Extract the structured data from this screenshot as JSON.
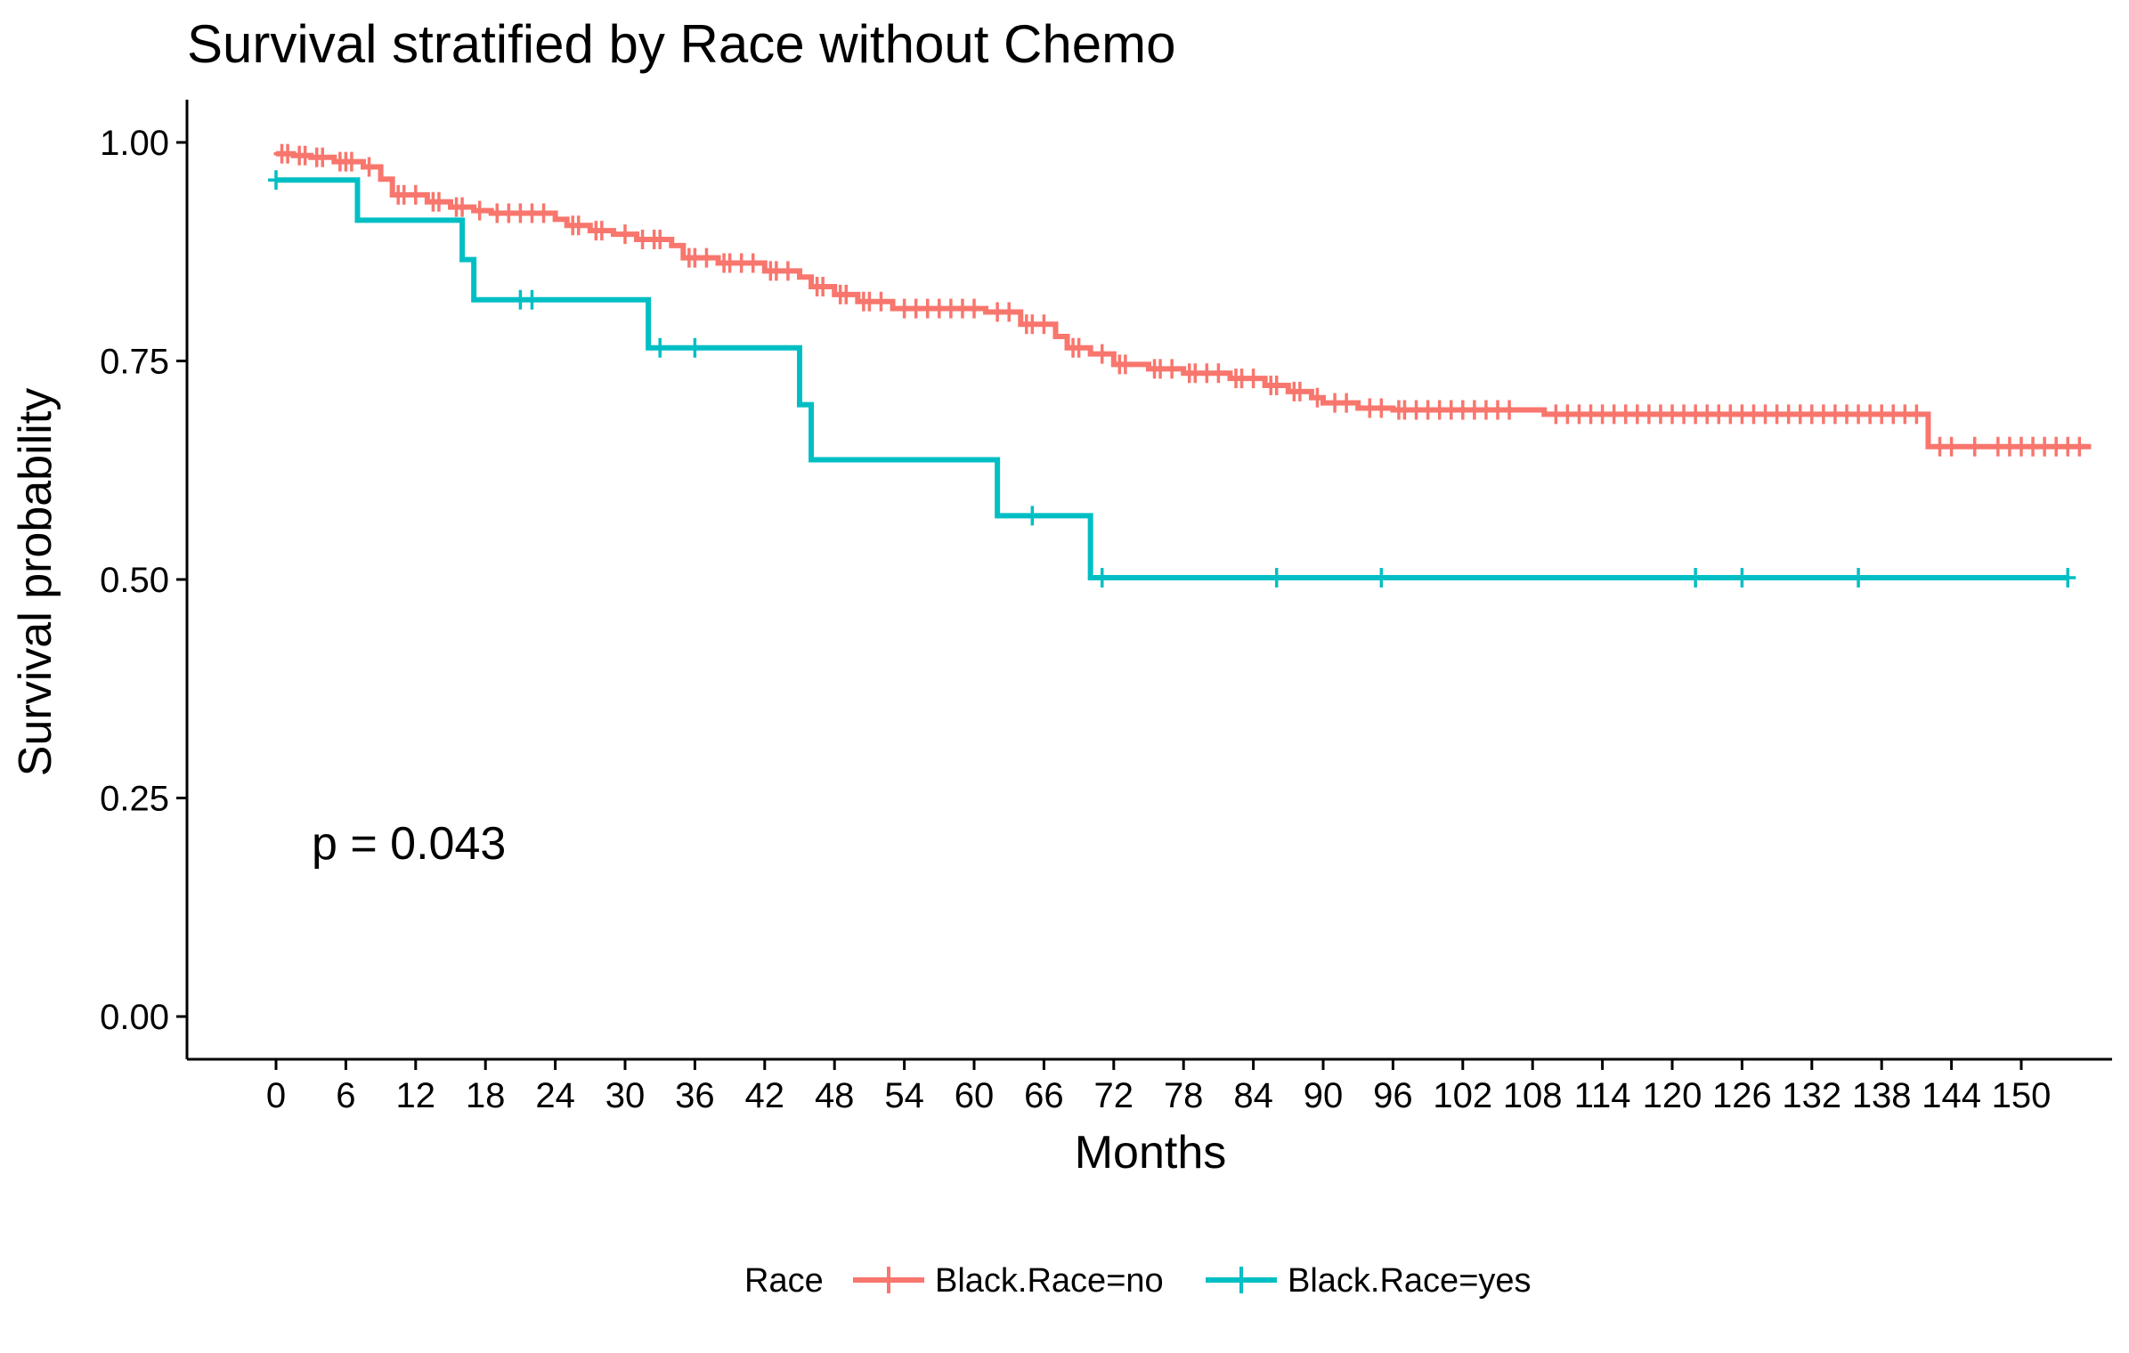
{
  "chart_data": {
    "type": "line",
    "title": "Survival stratified by Race without Chemo",
    "xlabel": "Months",
    "ylabel": "Survival probability",
    "xlim": [
      0,
      156
    ],
    "ylim": [
      0,
      1
    ],
    "x_ticks": [
      0,
      6,
      12,
      18,
      24,
      30,
      36,
      42,
      48,
      54,
      60,
      66,
      72,
      78,
      84,
      90,
      96,
      102,
      108,
      114,
      120,
      126,
      132,
      138,
      144,
      150
    ],
    "x_tick_labels": [
      "0",
      "6",
      "12",
      "18",
      "24",
      "30",
      "36",
      "42",
      "48",
      "54",
      "60",
      "66",
      "72",
      "78",
      "84",
      "90",
      "96",
      "102",
      "108",
      "114",
      "120",
      "126",
      "132",
      "138",
      "144",
      "150"
    ],
    "y_ticks": [
      0,
      0.25,
      0.5,
      0.75,
      1
    ],
    "y_tick_labels": [
      "0.00",
      "0.25",
      "0.50",
      "0.75",
      "1.00"
    ],
    "grid": false,
    "annotation": "p = 0.043",
    "legend": {
      "title": "Race",
      "position": "bottom"
    },
    "series": [
      {
        "name": "Black.Race=no",
        "color": "#F8766D",
        "steps": [
          [
            0,
            0.987
          ],
          [
            1.5,
            0.985
          ],
          [
            3,
            0.983
          ],
          [
            5,
            0.978
          ],
          [
            7.5,
            0.972
          ],
          [
            9,
            0.958
          ],
          [
            10,
            0.94
          ],
          [
            13,
            0.932
          ],
          [
            15,
            0.926
          ],
          [
            17,
            0.922
          ],
          [
            18.5,
            0.919
          ],
          [
            24,
            0.912
          ],
          [
            25,
            0.905
          ],
          [
            27,
            0.899
          ],
          [
            29,
            0.895
          ],
          [
            31,
            0.889
          ],
          [
            34,
            0.882
          ],
          [
            35,
            0.868
          ],
          [
            38,
            0.862
          ],
          [
            42,
            0.853
          ],
          [
            45,
            0.846
          ],
          [
            46,
            0.835
          ],
          [
            48,
            0.826
          ],
          [
            50,
            0.818
          ],
          [
            53,
            0.81
          ],
          [
            61,
            0.806
          ],
          [
            64,
            0.792
          ],
          [
            67,
            0.778
          ],
          [
            68,
            0.765
          ],
          [
            70,
            0.758
          ],
          [
            72,
            0.746
          ],
          [
            75,
            0.741
          ],
          [
            78,
            0.736
          ],
          [
            82,
            0.73
          ],
          [
            85,
            0.722
          ],
          [
            87,
            0.715
          ],
          [
            89,
            0.708
          ],
          [
            90,
            0.702
          ],
          [
            93,
            0.696
          ],
          [
            96,
            0.694
          ],
          [
            109,
            0.689
          ],
          [
            142,
            0.652
          ]
        ],
        "end": 156,
        "censored": [
          [
            0.5,
            0.987
          ],
          [
            1,
            0.987
          ],
          [
            2,
            0.985
          ],
          [
            2.5,
            0.985
          ],
          [
            3.5,
            0.983
          ],
          [
            4,
            0.983
          ],
          [
            5.5,
            0.978
          ],
          [
            6,
            0.978
          ],
          [
            6.5,
            0.978
          ],
          [
            8,
            0.972
          ],
          [
            10.5,
            0.94
          ],
          [
            11,
            0.94
          ],
          [
            12,
            0.94
          ],
          [
            13.5,
            0.932
          ],
          [
            14,
            0.932
          ],
          [
            15.5,
            0.926
          ],
          [
            16,
            0.926
          ],
          [
            17.5,
            0.922
          ],
          [
            19,
            0.919
          ],
          [
            20,
            0.919
          ],
          [
            21,
            0.919
          ],
          [
            22,
            0.919
          ],
          [
            23,
            0.919
          ],
          [
            25.5,
            0.905
          ],
          [
            26,
            0.905
          ],
          [
            27.5,
            0.899
          ],
          [
            28,
            0.899
          ],
          [
            30,
            0.895
          ],
          [
            31.5,
            0.889
          ],
          [
            32.5,
            0.889
          ],
          [
            33,
            0.889
          ],
          [
            35.5,
            0.868
          ],
          [
            36,
            0.868
          ],
          [
            37,
            0.868
          ],
          [
            38.5,
            0.862
          ],
          [
            39,
            0.862
          ],
          [
            40,
            0.862
          ],
          [
            41,
            0.862
          ],
          [
            42.5,
            0.853
          ],
          [
            43,
            0.853
          ],
          [
            44,
            0.853
          ],
          [
            46.5,
            0.835
          ],
          [
            47,
            0.835
          ],
          [
            48.5,
            0.826
          ],
          [
            49,
            0.826
          ],
          [
            50.5,
            0.818
          ],
          [
            51,
            0.818
          ],
          [
            52,
            0.818
          ],
          [
            54,
            0.81
          ],
          [
            55,
            0.81
          ],
          [
            56,
            0.81
          ],
          [
            57,
            0.81
          ],
          [
            58,
            0.81
          ],
          [
            59,
            0.81
          ],
          [
            60,
            0.81
          ],
          [
            62,
            0.806
          ],
          [
            63,
            0.806
          ],
          [
            64.5,
            0.792
          ],
          [
            65,
            0.792
          ],
          [
            66,
            0.792
          ],
          [
            68.5,
            0.765
          ],
          [
            69,
            0.765
          ],
          [
            71,
            0.758
          ],
          [
            72.5,
            0.746
          ],
          [
            73,
            0.746
          ],
          [
            75.5,
            0.741
          ],
          [
            76,
            0.741
          ],
          [
            77,
            0.741
          ],
          [
            78.5,
            0.736
          ],
          [
            79,
            0.736
          ],
          [
            80,
            0.736
          ],
          [
            81,
            0.736
          ],
          [
            82.5,
            0.73
          ],
          [
            83,
            0.73
          ],
          [
            84,
            0.73
          ],
          [
            85.5,
            0.722
          ],
          [
            86,
            0.722
          ],
          [
            87.5,
            0.715
          ],
          [
            88,
            0.715
          ],
          [
            89.5,
            0.708
          ],
          [
            91,
            0.702
          ],
          [
            92,
            0.702
          ],
          [
            94,
            0.696
          ],
          [
            95,
            0.696
          ],
          [
            96.5,
            0.694
          ],
          [
            97,
            0.694
          ],
          [
            98,
            0.694
          ],
          [
            99,
            0.694
          ],
          [
            100,
            0.694
          ],
          [
            101,
            0.694
          ],
          [
            102,
            0.694
          ],
          [
            103,
            0.694
          ],
          [
            104,
            0.694
          ],
          [
            105,
            0.694
          ],
          [
            106,
            0.694
          ],
          [
            110,
            0.689
          ],
          [
            111,
            0.689
          ],
          [
            112,
            0.689
          ],
          [
            113,
            0.689
          ],
          [
            114,
            0.689
          ],
          [
            115,
            0.689
          ],
          [
            116,
            0.689
          ],
          [
            117,
            0.689
          ],
          [
            118,
            0.689
          ],
          [
            119,
            0.689
          ],
          [
            120,
            0.689
          ],
          [
            121,
            0.689
          ],
          [
            122,
            0.689
          ],
          [
            123,
            0.689
          ],
          [
            124,
            0.689
          ],
          [
            125,
            0.689
          ],
          [
            126,
            0.689
          ],
          [
            127,
            0.689
          ],
          [
            128,
            0.689
          ],
          [
            129,
            0.689
          ],
          [
            130,
            0.689
          ],
          [
            131,
            0.689
          ],
          [
            132,
            0.689
          ],
          [
            133,
            0.689
          ],
          [
            134,
            0.689
          ],
          [
            135,
            0.689
          ],
          [
            136,
            0.689
          ],
          [
            137,
            0.689
          ],
          [
            138,
            0.689
          ],
          [
            139,
            0.689
          ],
          [
            140,
            0.689
          ],
          [
            141,
            0.689
          ],
          [
            143,
            0.652
          ],
          [
            144,
            0.652
          ],
          [
            146,
            0.652
          ],
          [
            148,
            0.652
          ],
          [
            149,
            0.652
          ],
          [
            150,
            0.652
          ],
          [
            151,
            0.652
          ],
          [
            152,
            0.652
          ],
          [
            153,
            0.652
          ],
          [
            154,
            0.652
          ],
          [
            155,
            0.652
          ]
        ]
      },
      {
        "name": "Black.Race=yes",
        "color": "#00BFC4",
        "steps": [
          [
            0,
            0.957
          ],
          [
            7,
            0.911
          ],
          [
            16,
            0.866
          ],
          [
            17,
            0.82
          ],
          [
            32,
            0.765
          ],
          [
            45,
            0.7
          ],
          [
            46,
            0.637
          ],
          [
            62,
            0.573
          ],
          [
            70,
            0.502
          ]
        ],
        "end": 154,
        "censored": [
          [
            0,
            0.957
          ],
          [
            21,
            0.82
          ],
          [
            22,
            0.82
          ],
          [
            33,
            0.765
          ],
          [
            36,
            0.765
          ],
          [
            65,
            0.573
          ],
          [
            71,
            0.502
          ],
          [
            86,
            0.502
          ],
          [
            95,
            0.502
          ],
          [
            122,
            0.502
          ],
          [
            126,
            0.502
          ],
          [
            136,
            0.502
          ],
          [
            154,
            0.502
          ]
        ]
      }
    ]
  }
}
